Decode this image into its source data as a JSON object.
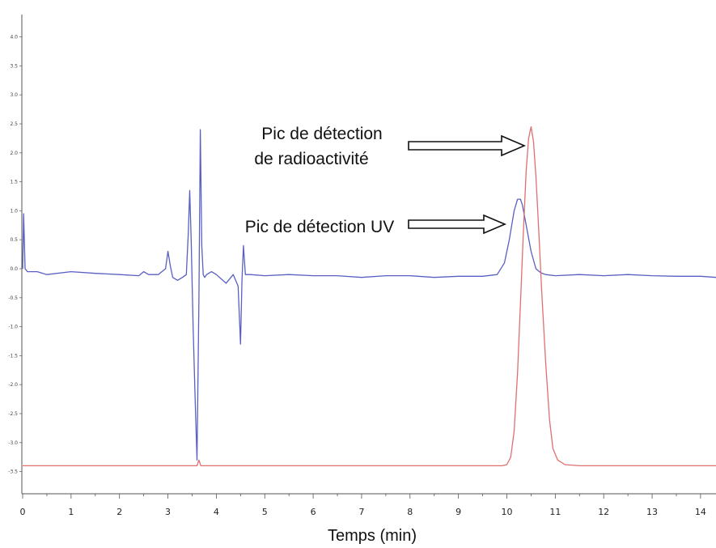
{
  "chart_data": {
    "type": "line",
    "xlabel": "Temps (min)",
    "xlim": [
      0,
      14.45
    ],
    "ylim": [
      -3.95,
      4.45
    ],
    "x_ticks": [
      "0",
      "1",
      "2",
      "3",
      "4",
      "5",
      "6",
      "7",
      "8",
      "9",
      "10",
      "11",
      "12",
      "13",
      "14"
    ],
    "y_ticks": [
      "4.0",
      "3.5",
      "3.0",
      "2.5",
      "2.0",
      "1.5",
      "1.0",
      "0.5",
      "0.0",
      "-0.5",
      "-1.0",
      "-1.5",
      "-2.0",
      "-2.5",
      "-3.0",
      "-3.5"
    ],
    "grid": false,
    "series": [
      {
        "color": "#5a5fc2",
        "x": [
          0,
          0.02,
          0.05,
          0.1,
          0.3,
          0.5,
          1.0,
          1.5,
          2.0,
          2.4,
          2.5,
          2.6,
          2.8,
          2.95,
          3.0,
          3.05,
          3.1,
          3.2,
          3.3,
          3.38,
          3.42,
          3.45,
          3.48,
          3.52,
          3.56,
          3.6,
          3.64,
          3.67,
          3.7,
          3.73,
          3.76,
          3.8,
          3.9,
          4.0,
          4.2,
          4.35,
          4.45,
          4.5,
          4.53,
          4.56,
          4.6,
          4.7,
          5.0,
          5.5,
          6.0,
          6.5,
          7.0,
          7.5,
          8.0,
          8.5,
          9.0,
          9.5,
          9.8,
          9.95,
          10.05,
          10.15,
          10.22,
          10.28,
          10.32,
          10.4,
          10.5,
          10.6,
          10.7,
          10.8,
          11.0,
          11.5,
          12.0,
          12.5,
          13.0,
          13.5,
          14.0,
          14.45
        ],
        "y": [
          0.0,
          0.95,
          0.0,
          -0.05,
          -0.05,
          -0.1,
          -0.05,
          -0.08,
          -0.1,
          -0.12,
          -0.05,
          -0.1,
          -0.1,
          0.0,
          0.3,
          0.05,
          -0.15,
          -0.2,
          -0.15,
          -0.1,
          0.6,
          1.35,
          0.5,
          -1.0,
          -2.2,
          -3.3,
          -0.5,
          2.4,
          0.4,
          -0.1,
          -0.15,
          -0.1,
          -0.05,
          -0.1,
          -0.25,
          -0.1,
          -0.3,
          -1.3,
          -0.2,
          0.4,
          -0.1,
          -0.1,
          -0.12,
          -0.1,
          -0.12,
          -0.12,
          -0.15,
          -0.12,
          -0.12,
          -0.15,
          -0.13,
          -0.13,
          -0.1,
          0.1,
          0.5,
          1.0,
          1.2,
          1.2,
          1.1,
          0.75,
          0.3,
          0.0,
          -0.07,
          -0.1,
          -0.12,
          -0.1,
          -0.12,
          -0.1,
          -0.12,
          -0.13,
          -0.13,
          -0.15
        ]
      },
      {
        "color": "#e07070",
        "x": [
          0,
          3.6,
          3.64,
          3.68,
          4.0,
          6.0,
          8.0,
          9.5,
          9.9,
          10.0,
          10.08,
          10.15,
          10.22,
          10.28,
          10.34,
          10.4,
          10.45,
          10.5,
          10.55,
          10.6,
          10.65,
          10.72,
          10.8,
          10.88,
          10.95,
          11.05,
          11.2,
          11.5,
          12.0,
          13.0,
          14.0,
          14.45
        ],
        "y": [
          -3.4,
          -3.4,
          -3.3,
          -3.4,
          -3.4,
          -3.4,
          -3.4,
          -3.4,
          -3.4,
          -3.38,
          -3.25,
          -2.8,
          -1.8,
          -0.6,
          0.6,
          1.7,
          2.25,
          2.45,
          2.2,
          1.6,
          0.8,
          -0.4,
          -1.6,
          -2.6,
          -3.1,
          -3.3,
          -3.38,
          -3.4,
          -3.4,
          -3.4,
          -3.4,
          -3.4
        ]
      }
    ],
    "annotations": [
      {
        "lines": [
          "Pic de détection",
          "de radioactivité"
        ],
        "points_to": {
          "x": 10.5,
          "y": 2.2
        }
      },
      {
        "lines": [
          "Pic de détection UV"
        ],
        "points_to": {
          "x": 10.22,
          "y": 0.75
        }
      }
    ]
  }
}
